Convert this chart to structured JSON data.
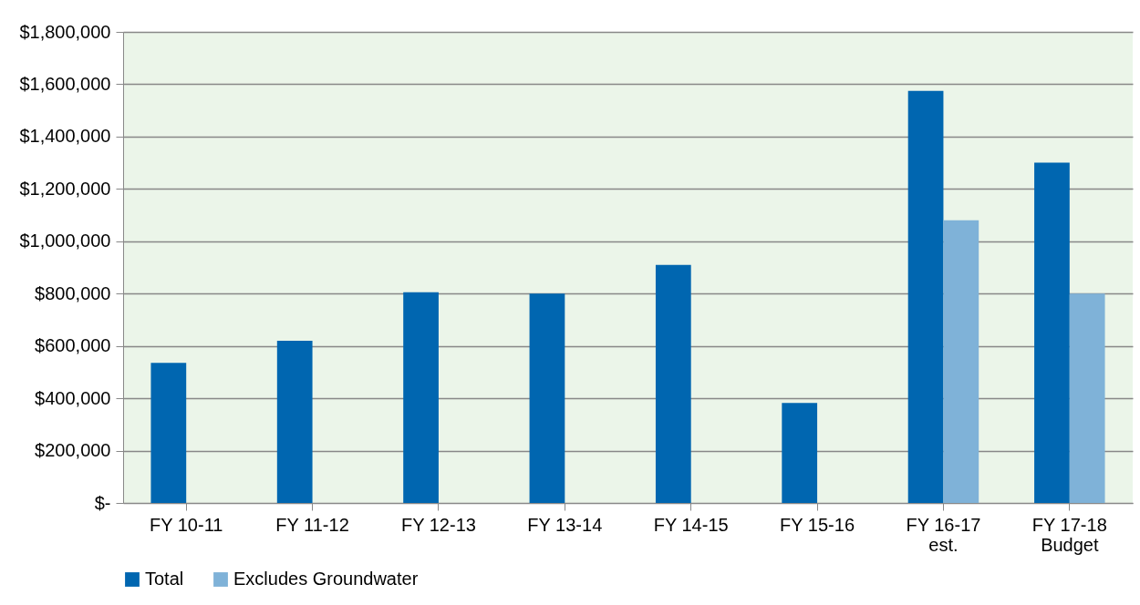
{
  "chart_data": {
    "type": "bar",
    "categories": [
      "FY 10-11",
      "FY 11-12",
      "FY 12-13",
      "FY 13-14",
      "FY 14-15",
      "FY 15-16",
      "FY 16-17\nest.",
      "FY 17-18\nBudget"
    ],
    "series": [
      {
        "name": "Total",
        "color": "#0066b0",
        "values": [
          535000,
          620000,
          805000,
          800000,
          910000,
          382000,
          1575000,
          1300000
        ]
      },
      {
        "name": "Excludes Groundwater",
        "color": "#7fb2d8",
        "values": [
          null,
          null,
          null,
          null,
          null,
          null,
          1080000,
          800000
        ]
      }
    ],
    "ylim": [
      0,
      1800000
    ],
    "yticks": [
      {
        "value": 0,
        "label": "$-"
      },
      {
        "value": 200000,
        "label": "$200,000"
      },
      {
        "value": 400000,
        "label": "$400,000"
      },
      {
        "value": 600000,
        "label": "$600,000"
      },
      {
        "value": 800000,
        "label": "$800,000"
      },
      {
        "value": 1000000,
        "label": "$1,000,000"
      },
      {
        "value": 1200000,
        "label": "$1,200,000"
      },
      {
        "value": 1400000,
        "label": "$1,400,000"
      },
      {
        "value": 1600000,
        "label": "$1,600,000"
      },
      {
        "value": 1800000,
        "label": "$1,800,000"
      }
    ],
    "grid": "y",
    "legend": "bottom"
  }
}
